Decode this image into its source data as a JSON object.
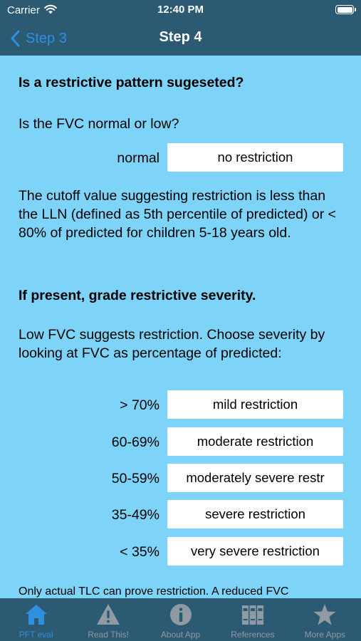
{
  "status_bar": {
    "carrier": "Carrier",
    "time": "12:40 PM",
    "wifi_icon": "wifi-icon",
    "battery_icon": "battery-icon"
  },
  "nav": {
    "back_label": "Step 3",
    "title": "Step 4"
  },
  "content": {
    "heading1": "Is a restrictive pattern sugeseted?",
    "question": "Is the FVC normal or low?",
    "fvc_row": {
      "label": "normal",
      "value": "no restriction"
    },
    "cutoff_text": "The cutoff value suggesting restriction is less than the LLN (defined as 5th percentile of predicted) or < 80% of predicted for children 5-18 years old.",
    "heading2": "If present, grade restrictive severity.",
    "severity_intro": "Low FVC suggests restriction.  Choose severity by looking at FVC as percentage of predicted:",
    "severity_rows": [
      {
        "label": "> 70%",
        "value": "mild restriction"
      },
      {
        "label": "60-69%",
        "value": "moderate restriction"
      },
      {
        "label": "50-59%",
        "value": "moderately severe restr"
      },
      {
        "label": "35-49%",
        "value": "severe restriction"
      },
      {
        "label": "< 35%",
        "value": "very severe restriction"
      }
    ],
    "footnote": "Only actual TLC can prove restriction.  A reduced FVC"
  },
  "tabs": [
    {
      "label": "PFT eval",
      "icon": "home-icon",
      "active": true
    },
    {
      "label": "Read This!",
      "icon": "warning-icon",
      "active": false
    },
    {
      "label": "About App",
      "icon": "info-icon",
      "active": false
    },
    {
      "label": "References",
      "icon": "books-icon",
      "active": false
    },
    {
      "label": "More Apps",
      "icon": "star-icon",
      "active": false
    }
  ],
  "colors": {
    "bar_background": "#2c5a73",
    "content_background": "#7dd3f8",
    "accent": "#2f8fdf",
    "inactive_tab": "#8f9aa2"
  }
}
